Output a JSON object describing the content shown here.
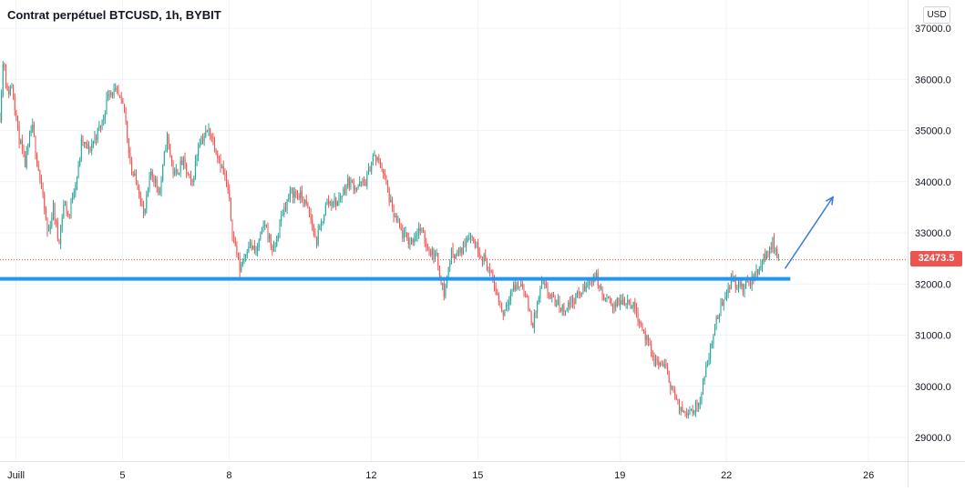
{
  "header": {
    "title": "Contrat perpétuel BTCUSD, 1h, BYBIT"
  },
  "axis": {
    "currency_label": "USD"
  },
  "current_price": {
    "label": "32473.5",
    "value": 32473.5,
    "color": "#ef5350"
  },
  "colors": {
    "up": "#26a69a",
    "down": "#ef5350",
    "support_line": "#2196f3",
    "arrow": "#3b78d4",
    "grid": "#f0f3fa",
    "axis_text": "#131722"
  },
  "chart_data": {
    "type": "candlestick",
    "title": "Contrat perpétuel BTCUSD, 1h, BYBIT",
    "y_ticks": [
      "37000.0",
      "36000.0",
      "35000.0",
      "34000.0",
      "33000.0",
      "32000.0",
      "31000.0",
      "30000.0",
      "29000.0"
    ],
    "y_tick_values": [
      37000,
      36000,
      35000,
      34000,
      33000,
      32000,
      31000,
      30000,
      29000
    ],
    "x_ticks": [
      "Juill",
      "5",
      "8",
      "12",
      "15",
      "19",
      "22",
      "26"
    ],
    "x_tick_days": [
      2,
      5,
      8,
      12,
      15,
      19,
      22,
      26
    ],
    "x_range_days": [
      1.55,
      27.1
    ],
    "ylim": [
      28750,
      37200
    ],
    "grid": true,
    "price_path": [
      [
        1.55,
        35300
      ],
      [
        1.65,
        36500
      ],
      [
        1.75,
        35700
      ],
      [
        1.9,
        35900
      ],
      [
        2.05,
        35000
      ],
      [
        2.25,
        34300
      ],
      [
        2.45,
        35100
      ],
      [
        2.6,
        34400
      ],
      [
        2.75,
        33700
      ],
      [
        2.9,
        32950
      ],
      [
        3.05,
        33500
      ],
      [
        3.2,
        32800
      ],
      [
        3.35,
        33600
      ],
      [
        3.5,
        33300
      ],
      [
        3.6,
        33800
      ],
      [
        3.75,
        34200
      ],
      [
        3.85,
        34800
      ],
      [
        4.05,
        34600
      ],
      [
        4.25,
        34900
      ],
      [
        4.45,
        35200
      ],
      [
        4.6,
        35800
      ],
      [
        4.85,
        35700
      ],
      [
        5.05,
        35400
      ],
      [
        5.25,
        34200
      ],
      [
        5.45,
        33900
      ],
      [
        5.6,
        33300
      ],
      [
        5.8,
        34200
      ],
      [
        6.05,
        33800
      ],
      [
        6.25,
        34900
      ],
      [
        6.45,
        34100
      ],
      [
        6.7,
        34400
      ],
      [
        6.95,
        33900
      ],
      [
        7.15,
        34800
      ],
      [
        7.45,
        35000
      ],
      [
        7.7,
        34500
      ],
      [
        7.95,
        33900
      ],
      [
        8.1,
        33000
      ],
      [
        8.3,
        32300
      ],
      [
        8.55,
        32800
      ],
      [
        8.75,
        32600
      ],
      [
        9.0,
        33200
      ],
      [
        9.25,
        32600
      ],
      [
        9.5,
        33400
      ],
      [
        9.75,
        33800
      ],
      [
        10.05,
        33700
      ],
      [
        10.25,
        33400
      ],
      [
        10.45,
        32800
      ],
      [
        10.75,
        33600
      ],
      [
        11.05,
        33600
      ],
      [
        11.35,
        34000
      ],
      [
        11.6,
        33900
      ],
      [
        11.85,
        34000
      ],
      [
        12.05,
        34500
      ],
      [
        12.3,
        34300
      ],
      [
        12.6,
        33400
      ],
      [
        12.85,
        33000
      ],
      [
        13.1,
        32800
      ],
      [
        13.35,
        33100
      ],
      [
        13.6,
        32700
      ],
      [
        13.85,
        32500
      ],
      [
        14.05,
        31800
      ],
      [
        14.25,
        32600
      ],
      [
        14.5,
        32600
      ],
      [
        14.75,
        33000
      ],
      [
        15.0,
        32700
      ],
      [
        15.25,
        32400
      ],
      [
        15.5,
        31900
      ],
      [
        15.7,
        31400
      ],
      [
        15.95,
        31900
      ],
      [
        16.25,
        32000
      ],
      [
        16.55,
        31200
      ],
      [
        16.8,
        32000
      ],
      [
        17.1,
        31700
      ],
      [
        17.4,
        31500
      ],
      [
        17.7,
        31700
      ],
      [
        18.0,
        31900
      ],
      [
        18.3,
        32200
      ],
      [
        18.55,
        31700
      ],
      [
        18.85,
        31600
      ],
      [
        19.2,
        31700
      ],
      [
        19.45,
        31500
      ],
      [
        19.75,
        30900
      ],
      [
        19.95,
        30500
      ],
      [
        20.25,
        30400
      ],
      [
        20.5,
        29900
      ],
      [
        20.7,
        29500
      ],
      [
        20.95,
        29550
      ],
      [
        21.2,
        29600
      ],
      [
        21.45,
        30400
      ],
      [
        21.65,
        31100
      ],
      [
        21.9,
        31700
      ],
      [
        22.15,
        32100
      ],
      [
        22.45,
        31900
      ],
      [
        22.75,
        32100
      ],
      [
        23.05,
        32500
      ],
      [
        23.3,
        32800
      ],
      [
        23.5,
        32473.5
      ]
    ],
    "horizontal_line": {
      "price": 32100,
      "from_day": 1.55,
      "to_day": 23.8
    },
    "arrow": {
      "from": [
        23.65,
        32300
      ],
      "to": [
        25.0,
        33700
      ]
    }
  }
}
